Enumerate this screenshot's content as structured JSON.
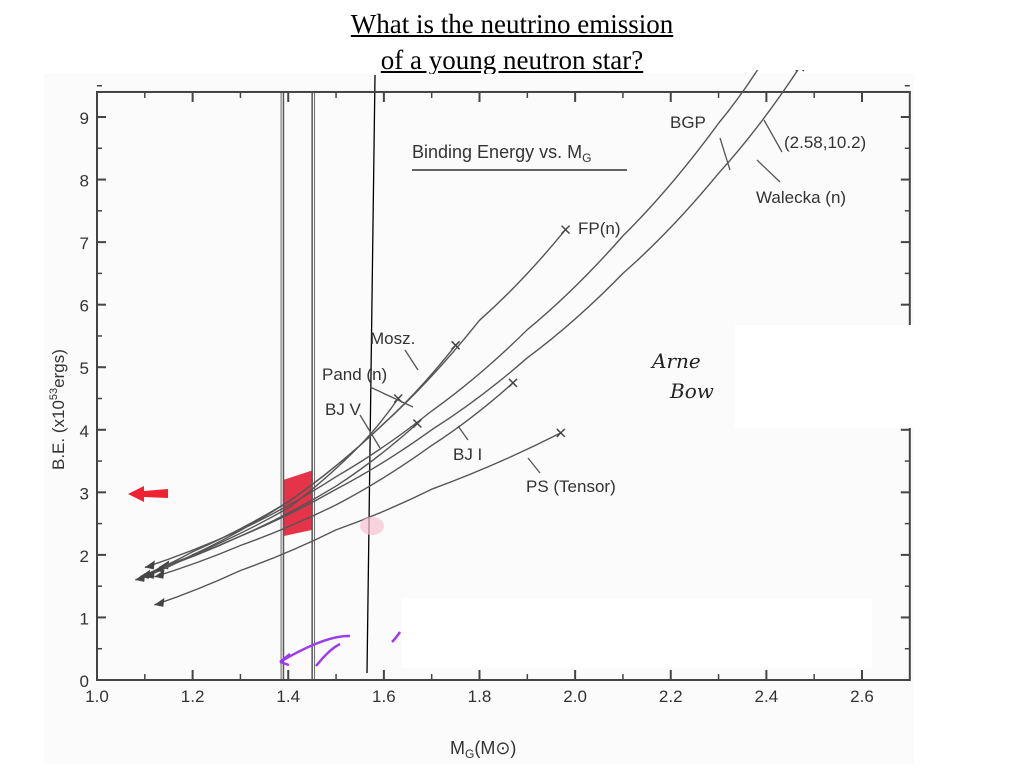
{
  "slide": {
    "title_line1": "What is the neutrino emission",
    "title_line2": "of a young neutron star?"
  },
  "chart_data": {
    "type": "line",
    "title": "Binding Energy vs. M_G",
    "title_main": "Binding Energy vs. M",
    "title_sub": "G",
    "xlabel": "M_G (M_⊙)",
    "xlabel_main": "M",
    "xlabel_sub": "G",
    "xlabel_unit": "(M⊙)",
    "ylabel": "B.E. (x10^53 ergs)",
    "ylabel_pre": "B.E. (x10",
    "ylabel_sup": "53",
    "ylabel_post": "ergs)",
    "xlim": [
      1.0,
      2.7
    ],
    "ylim": [
      0,
      9.4
    ],
    "xticks": [
      "1.0",
      "1.2",
      "1.4",
      "1.6",
      "1.8",
      "2.0",
      "2.2",
      "2.4",
      "2.6"
    ],
    "yticks": [
      "0",
      "1",
      "2",
      "3",
      "4",
      "5",
      "6",
      "7",
      "8",
      "9"
    ],
    "series": [
      {
        "name": "BGP",
        "x": [
          1.1,
          1.3,
          1.5,
          1.7,
          1.9,
          2.1,
          2.3,
          2.41
        ],
        "y": [
          1.8,
          2.4,
          3.25,
          4.3,
          5.6,
          7.1,
          8.9,
          10.1
        ]
      },
      {
        "name": "Walecka (n)",
        "x": [
          1.13,
          1.3,
          1.5,
          1.7,
          1.9,
          2.1,
          2.3,
          2.47
        ],
        "y": [
          1.8,
          2.3,
          3.05,
          4.0,
          5.15,
          6.5,
          8.1,
          9.8
        ]
      },
      {
        "name": "FP(n)",
        "x": [
          1.08,
          1.2,
          1.4,
          1.6,
          1.8,
          1.98
        ],
        "y": [
          1.6,
          2.0,
          2.85,
          4.1,
          5.75,
          7.2
        ]
      },
      {
        "name": "Mosz.",
        "x": [
          1.09,
          1.2,
          1.4,
          1.6,
          1.75
        ],
        "y": [
          1.65,
          2.05,
          2.85,
          4.1,
          5.35
        ]
      },
      {
        "name": "Pand (n)",
        "x": [
          1.1,
          1.2,
          1.4,
          1.55,
          1.63
        ],
        "y": [
          1.65,
          2.0,
          2.75,
          3.75,
          4.5
        ]
      },
      {
        "name": "BJ V",
        "x": [
          1.12,
          1.3,
          1.5,
          1.67
        ],
        "y": [
          1.75,
          2.3,
          3.1,
          4.1
        ]
      },
      {
        "name": "BJ I",
        "x": [
          1.12,
          1.3,
          1.5,
          1.7,
          1.87
        ],
        "y": [
          1.65,
          2.15,
          2.8,
          3.75,
          4.75
        ]
      },
      {
        "name": "PS (Tensor)",
        "x": [
          1.12,
          1.3,
          1.5,
          1.7,
          1.97
        ],
        "y": [
          1.2,
          1.75,
          2.4,
          3.05,
          3.95
        ]
      }
    ],
    "annotations": [
      "BGP",
      "(2.58,10.2)",
      "Walecka (n)",
      "FP(n)",
      "Mosz.",
      "Pand (n)",
      "BJ V",
      "BJ I",
      "PS (Tensor)"
    ],
    "highlight_band_x": [
      1.39,
      1.45
    ],
    "grid": false,
    "legend": "none"
  },
  "handwriting": [
    "Arne",
    "Bow"
  ],
  "colors": {
    "highlight": "#e0102a",
    "arrow": "#ee2230",
    "purple": "#9b3cf0",
    "pink": "#f7a8c0"
  }
}
